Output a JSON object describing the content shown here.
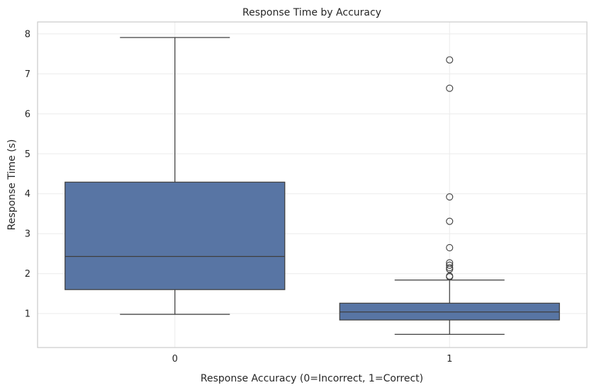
{
  "chart_data": {
    "type": "box",
    "title": "Response Time by Accuracy",
    "xlabel": "Response Accuracy (0=Incorrect, 1=Correct)",
    "ylabel": "Response Time (s)",
    "categories": [
      "0",
      "1"
    ],
    "ylim": [
      0.15,
      8.3
    ],
    "yticks": [
      "1",
      "2",
      "3",
      "4",
      "5",
      "6",
      "7",
      "8"
    ],
    "grid": true,
    "box_color": "#5875a4",
    "line_color": "#3f3f3f",
    "boxes": [
      {
        "category": "0",
        "whislo": 0.98,
        "q1": 1.6,
        "med": 2.43,
        "q3": 4.29,
        "whishi": 7.91,
        "fliers": []
      },
      {
        "category": "1",
        "whislo": 0.48,
        "q1": 0.84,
        "med": 1.04,
        "q3": 1.26,
        "whishi": 1.84,
        "fliers": [
          7.35,
          6.64,
          3.92,
          3.31,
          2.65,
          2.27,
          2.21,
          2.15,
          2.11,
          1.94,
          1.92
        ]
      }
    ]
  }
}
